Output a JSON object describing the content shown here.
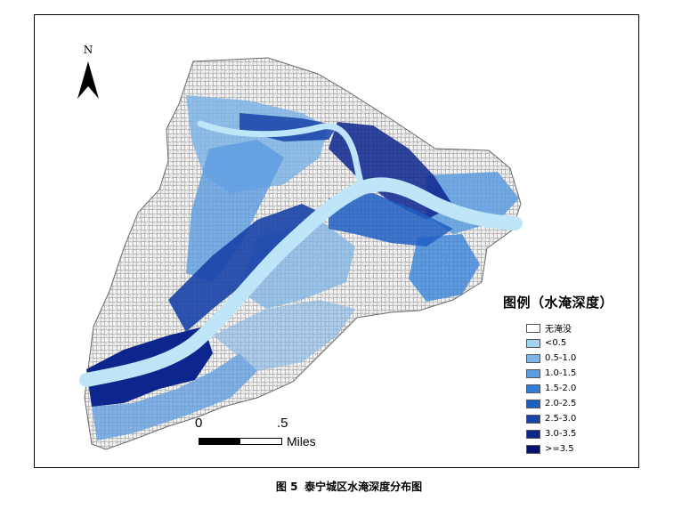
{
  "north_arrow": {
    "label": "N"
  },
  "legend": {
    "title": "图例（水淹深度）",
    "items": [
      {
        "label": "无淹没",
        "color": "#ffffff"
      },
      {
        "label": "<0.5",
        "color": "#9fd3f0"
      },
      {
        "label": "0.5-1.0",
        "color": "#7fb4e6"
      },
      {
        "label": "1.0-1.5",
        "color": "#5c9ce0"
      },
      {
        "label": "1.5-2.0",
        "color": "#2f7fd8"
      },
      {
        "label": "2.0-2.5",
        "color": "#1e5fc4"
      },
      {
        "label": "2.5-3.0",
        "color": "#1843a8"
      },
      {
        "label": "3.0-3.5",
        "color": "#0d268e"
      },
      {
        "label": ">=3.5",
        "color": "#050f6e"
      }
    ]
  },
  "scale_bar": {
    "tick_start": "0",
    "tick_mid": ".5",
    "units": "Miles"
  },
  "caption": {
    "figure_number": "图 5",
    "text": "泰宁城区水淹深度分布图"
  },
  "colors": {
    "river": "#bfe6f8",
    "frame": "#000000",
    "roads": "#9a9a9a"
  }
}
